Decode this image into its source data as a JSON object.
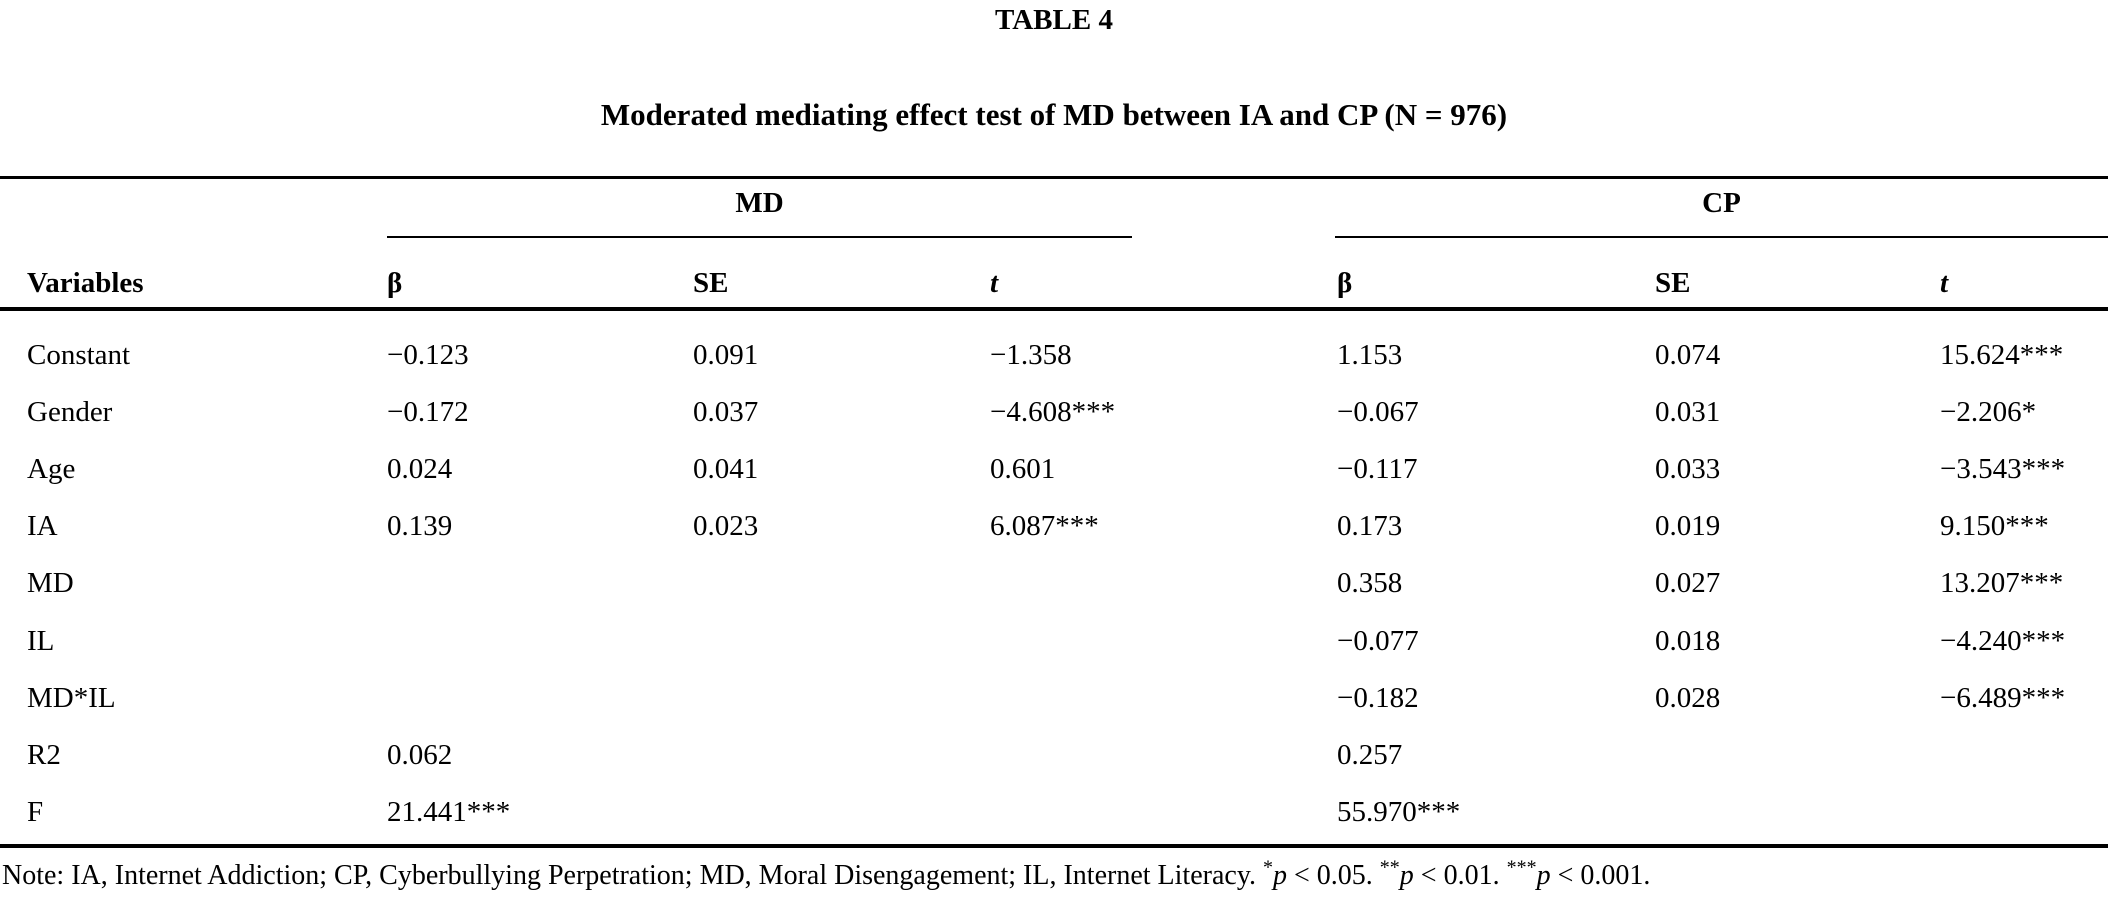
{
  "table": {
    "label": "TABLE 4",
    "caption": "Moderated mediating effect test of MD between IA and CP (N = 976)",
    "groups": {
      "md": "MD",
      "cp": "CP"
    },
    "header": {
      "variables": "Variables",
      "beta": "β",
      "se": "SE",
      "t": "t"
    },
    "rows": [
      {
        "label": "Constant",
        "md_beta": "−0.123",
        "md_se": "0.091",
        "md_t": "−1.358",
        "cp_beta": "1.153",
        "cp_se": "0.074",
        "cp_t": "15.624***"
      },
      {
        "label": "Gender",
        "md_beta": "−0.172",
        "md_se": "0.037",
        "md_t": "−4.608***",
        "cp_beta": "−0.067",
        "cp_se": "0.031",
        "cp_t": "−2.206*"
      },
      {
        "label": "Age",
        "md_beta": "0.024",
        "md_se": "0.041",
        "md_t": "0.601",
        "cp_beta": "−0.117",
        "cp_se": "0.033",
        "cp_t": "−3.543***"
      },
      {
        "label": "IA",
        "md_beta": "0.139",
        "md_se": "0.023",
        "md_t": "6.087***",
        "cp_beta": "0.173",
        "cp_se": "0.019",
        "cp_t": "9.150***"
      },
      {
        "label": "MD",
        "md_beta": "",
        "md_se": "",
        "md_t": "",
        "cp_beta": "0.358",
        "cp_se": "0.027",
        "cp_t": "13.207***"
      },
      {
        "label": "IL",
        "md_beta": "",
        "md_se": "",
        "md_t": "",
        "cp_beta": "−0.077",
        "cp_se": "0.018",
        "cp_t": "−4.240***"
      },
      {
        "label": "MD*IL",
        "md_beta": "",
        "md_se": "",
        "md_t": "",
        "cp_beta": "−0.182",
        "cp_se": "0.028",
        "cp_t": "−6.489***"
      },
      {
        "label": "R2",
        "md_beta": "0.062",
        "md_se": "",
        "md_t": "",
        "cp_beta": "0.257",
        "cp_se": "",
        "cp_t": ""
      },
      {
        "label": "F",
        "md_beta": "21.441***",
        "md_se": "",
        "md_t": "",
        "cp_beta": "55.970***",
        "cp_se": "",
        "cp_t": ""
      }
    ],
    "note": {
      "prefix": "Note: IA, Internet Addiction; CP, Cyberbullying Perpetration; MD, Moral Disengagement; IL, Internet Literacy. ",
      "sig": [
        {
          "stars": "*",
          "p": "p",
          "rest": " < 0.05. "
        },
        {
          "stars": "**",
          "p": "p",
          "rest": " < 0.01. "
        },
        {
          "stars": "***",
          "p": "p",
          "rest": " < 0.001."
        }
      ]
    }
  }
}
